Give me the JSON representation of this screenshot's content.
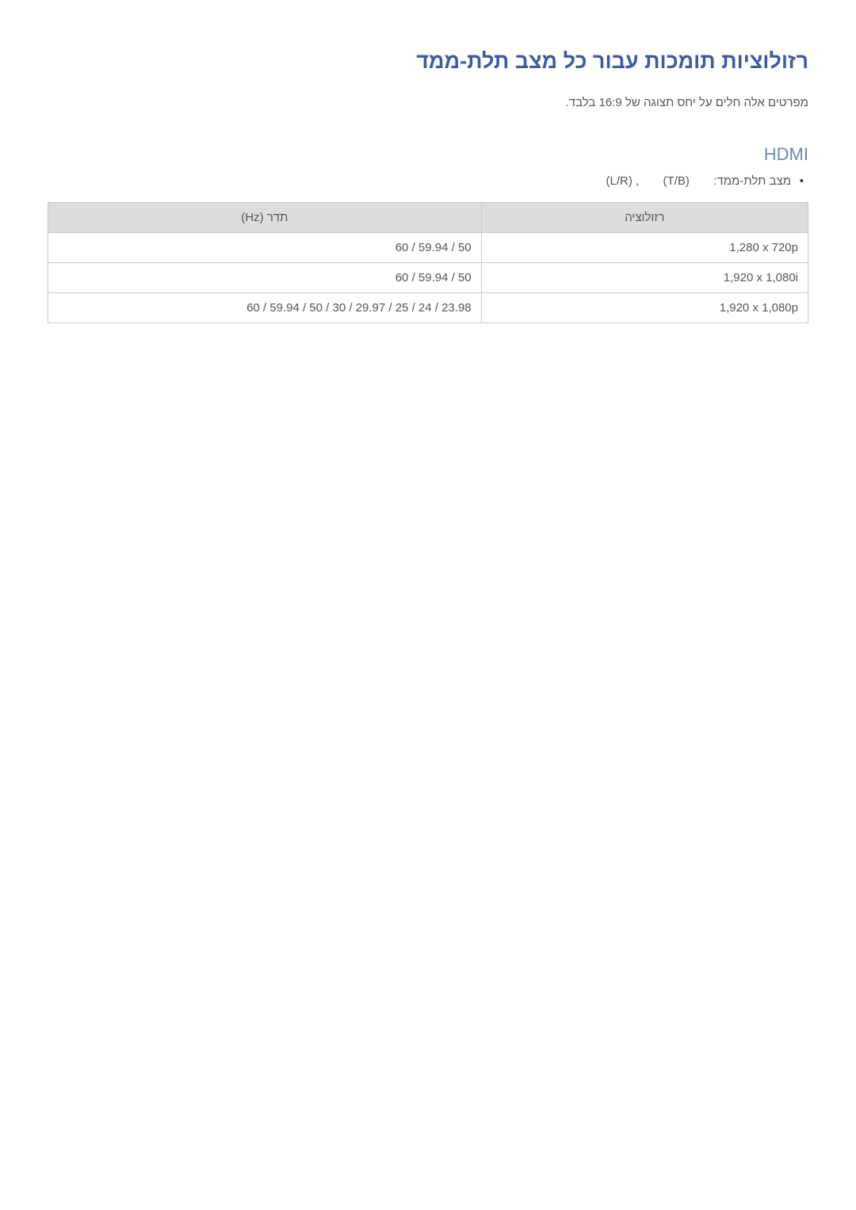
{
  "title": "רזולוציות תומכות עבור כל מצב תלת-ממד",
  "intro": "מפרטים אלה חלים על יחס תצוגה של 16:9 בלבד.",
  "section_hdmi": {
    "heading": "HDMI",
    "note_mode_label": "מצב תלת-ממד:",
    "note_tb": "(T/B)",
    "note_comma": ",",
    "note_lr": "(L/R)"
  },
  "table": {
    "columns": {
      "resolution": "רזולוציה",
      "frequency": "תדר (Hz)"
    },
    "rows": [
      {
        "resolution": "1,280 x 720p",
        "frequency": "60 / 59.94 / 50"
      },
      {
        "resolution": "1,920 x 1,080i",
        "frequency": "60 / 59.94 / 50"
      },
      {
        "resolution": "1,920 x 1,080p",
        "frequency": "60 / 59.94 / 50 / 30 / 29.97 / 25 / 24 / 23.98"
      }
    ],
    "styling": {
      "header_bg": "#dddddd",
      "border_color": "#c9c9c9",
      "text_color": "#555555",
      "font_size_pt": 11,
      "col_widths_pct": {
        "resolution": 43,
        "frequency": 57
      },
      "cell_align": "right"
    }
  },
  "colors": {
    "title": "#3b5ba5",
    "section_heading": "#6f88b9",
    "body_text": "#555555",
    "background": "#ffffff"
  },
  "typography": {
    "title_fontsize_pt": 20,
    "section_heading_fontsize_pt": 16,
    "body_fontsize_pt": 11
  }
}
